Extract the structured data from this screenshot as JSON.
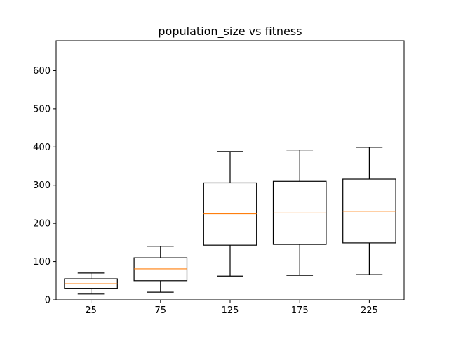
{
  "chart_data": {
    "type": "box",
    "title": "population_size vs fitness",
    "xlabel": "",
    "ylabel": "",
    "categories": [
      "25",
      "75",
      "125",
      "175",
      "225"
    ],
    "boxes": [
      {
        "whisker_low": 15,
        "q1": 30,
        "median": 42,
        "q3": 55,
        "whisker_high": 70
      },
      {
        "whisker_low": 20,
        "q1": 50,
        "median": 81,
        "q3": 110,
        "whisker_high": 140
      },
      {
        "whisker_low": 62,
        "q1": 143,
        "median": 225,
        "q3": 306,
        "whisker_high": 388
      },
      {
        "whisker_low": 64,
        "q1": 145,
        "median": 227,
        "q3": 310,
        "whisker_high": 392
      },
      {
        "whisker_low": 66,
        "q1": 149,
        "median": 232,
        "q3": 316,
        "whisker_high": 399
      }
    ],
    "yticks": [
      0,
      100,
      200,
      300,
      400,
      500,
      600
    ],
    "ylim": [
      0,
      678
    ],
    "grid": false,
    "colors": {
      "box": "#000000",
      "median": "#ff7f0e",
      "axes": "#000000",
      "background": "#ffffff"
    }
  }
}
